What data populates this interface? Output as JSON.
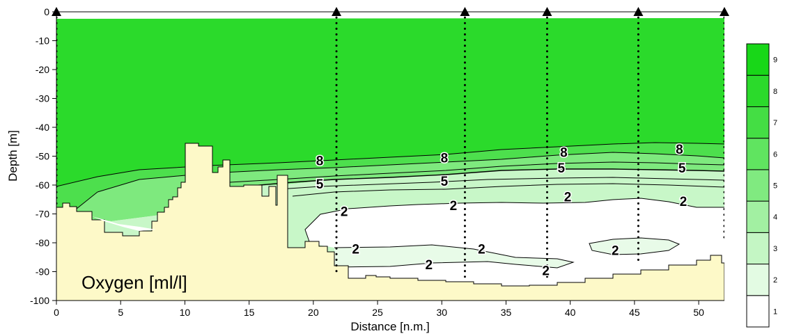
{
  "chart_data": {
    "type": "contour",
    "title": "Oxygen [ml/l]",
    "xlabel": "Distance [n.m.]",
    "ylabel": "Depth [m]",
    "xlim": [
      0,
      52
    ],
    "ylim": [
      -100,
      0
    ],
    "xticks": [
      0,
      5,
      10,
      15,
      20,
      25,
      30,
      35,
      40,
      45,
      50
    ],
    "yticks": [
      0,
      -10,
      -20,
      -30,
      -40,
      -50,
      -60,
      -70,
      -80,
      -90,
      -100
    ],
    "stations": [
      0,
      21.8,
      31.8,
      38.2,
      45.3,
      52
    ],
    "sampling_depths": [
      {
        "x": 0,
        "bottom": -68
      },
      {
        "x": 21.8,
        "bottom": -90
      },
      {
        "x": 31.8,
        "bottom": -92
      },
      {
        "x": 38.2,
        "bottom": -92
      },
      {
        "x": 45.3,
        "bottom": -86
      },
      {
        "x": 52,
        "bottom": -80
      }
    ],
    "colorbar": {
      "levels": [
        1,
        2,
        3,
        4,
        5,
        6,
        7,
        8,
        9
      ],
      "colors": [
        "#ffffff",
        "#e3fbe3",
        "#c4f6c4",
        "#a2f0a2",
        "#80ea80",
        "#60e460",
        "#44de44",
        "#2bda2b",
        "#18d718"
      ]
    },
    "contour_labels": [
      {
        "text": "8",
        "x": 20.5,
        "y": -51.5
      },
      {
        "text": "8",
        "x": 30.2,
        "y": -50.5
      },
      {
        "text": "8",
        "x": 39.5,
        "y": -48.5
      },
      {
        "text": "8",
        "x": 48.5,
        "y": -47.5
      },
      {
        "text": "5",
        "x": 20.5,
        "y": -59.5
      },
      {
        "text": "5",
        "x": 30.2,
        "y": -58.5
      },
      {
        "text": "5",
        "x": 39.3,
        "y": -54
      },
      {
        "text": "5",
        "x": 48.7,
        "y": -54
      },
      {
        "text": "2",
        "x": 22.4,
        "y": -69
      },
      {
        "text": "2",
        "x": 30.9,
        "y": -67
      },
      {
        "text": "2",
        "x": 39.8,
        "y": -64
      },
      {
        "text": "2",
        "x": 48.8,
        "y": -65.5
      },
      {
        "text": "2",
        "x": 23.3,
        "y": -82
      },
      {
        "text": "2",
        "x": 29,
        "y": -87.5
      },
      {
        "text": "2",
        "x": 33.1,
        "y": -82
      },
      {
        "text": "2",
        "x": 38.1,
        "y": -89.5
      },
      {
        "text": "2",
        "x": 43.5,
        "y": -82.5
      }
    ]
  }
}
